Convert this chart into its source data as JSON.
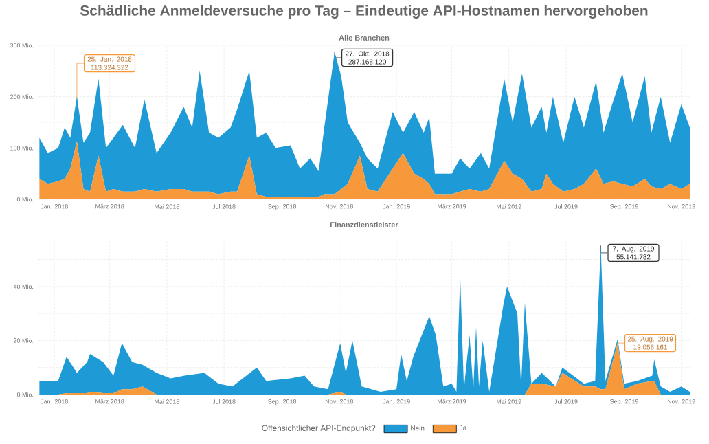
{
  "chart_data": [
    {
      "type": "area",
      "stacked": true,
      "title": "Schädliche Anmeldeversuche pro Tag – Eindeutige API-Hostnamen hervorgehoben",
      "subtitle": "Alle Branchen",
      "grid": true,
      "x": [
        "2017-12-16",
        "2017-12-25",
        "2018-01-05",
        "2018-01-12",
        "2018-01-18",
        "2018-01-25",
        "2018-02-01",
        "2018-02-08",
        "2018-02-17",
        "2018-02-25",
        "2018-03-05",
        "2018-03-15",
        "2018-03-28",
        "2018-04-07",
        "2018-04-20",
        "2018-05-05",
        "2018-05-19",
        "2018-05-28",
        "2018-06-05",
        "2018-06-15",
        "2018-06-25",
        "2018-07-08",
        "2018-07-15",
        "2018-07-28",
        "2018-08-05",
        "2018-08-15",
        "2018-08-25",
        "2018-09-10",
        "2018-09-20",
        "2018-10-01",
        "2018-10-10",
        "2018-10-16",
        "2018-10-27",
        "2018-11-03",
        "2018-11-10",
        "2018-11-23",
        "2018-12-01",
        "2018-12-12",
        "2018-12-28",
        "2019-01-08",
        "2019-01-20",
        "2019-01-30",
        "2019-02-05",
        "2019-02-11",
        "2019-03-01",
        "2019-03-10",
        "2019-03-20",
        "2019-04-01",
        "2019-04-10",
        "2019-04-26",
        "2019-05-05",
        "2019-05-15",
        "2019-05-25",
        "2019-06-05",
        "2019-06-10",
        "2019-06-17",
        "2019-06-28",
        "2019-07-10",
        "2019-07-20",
        "2019-08-02",
        "2019-08-10",
        "2019-08-20",
        "2019-08-30",
        "2019-09-10",
        "2019-09-23",
        "2019-09-30",
        "2019-10-10",
        "2019-10-20",
        "2019-11-01",
        "2019-11-10"
      ],
      "series": [
        {
          "color": "#f7993a",
          "values": [
            40,
            30,
            35,
            40,
            60,
            113.324322,
            20,
            15,
            85,
            15,
            20,
            15,
            15,
            20,
            15,
            20,
            20,
            15,
            15,
            15,
            10,
            15,
            15,
            85,
            10,
            5,
            5,
            5,
            5,
            5,
            5,
            10,
            10,
            20,
            30,
            85,
            20,
            15,
            60,
            90,
            50,
            40,
            30,
            10,
            10,
            15,
            20,
            15,
            20,
            75,
            50,
            40,
            15,
            20,
            50,
            30,
            15,
            20,
            30,
            60,
            30,
            35,
            30,
            25,
            40,
            25,
            20,
            30,
            20,
            30
          ]
        },
        {
          "color": "#1e9ad6",
          "values": [
            80,
            60,
            65,
            100,
            60,
            87,
            90,
            115,
            150,
            85,
            100,
            130,
            85,
            175,
            75,
            110,
            160,
            125,
            235,
            115,
            110,
            125,
            160,
            165,
            110,
            125,
            95,
            100,
            55,
            75,
            50,
            130,
            277.16812,
            220,
            120,
            25,
            60,
            45,
            110,
            40,
            120,
            90,
            130,
            40,
            40,
            65,
            40,
            75,
            40,
            160,
            100,
            205,
            125,
            160,
            80,
            170,
            95,
            180,
            110,
            170,
            100,
            155,
            215,
            125,
            200,
            105,
            180,
            80,
            165,
            110
          ]
        }
      ],
      "xlim": [
        "2017-12-15",
        "2019-11-10"
      ],
      "xticks": [
        {
          "value": "2018-01-01",
          "label": "Jan. 2018"
        },
        {
          "value": "2018-03-01",
          "label": "März 2018"
        },
        {
          "value": "2018-05-01",
          "label": "Mai 2018"
        },
        {
          "value": "2018-07-01",
          "label": "Jul 2018"
        },
        {
          "value": "2018-09-01",
          "label": "Sep. 2018"
        },
        {
          "value": "2018-11-01",
          "label": "Nov. 2018"
        },
        {
          "value": "2019-01-01",
          "label": "Jan. 2019"
        },
        {
          "value": "2019-03-01",
          "label": "März 2019"
        },
        {
          "value": "2019-05-01",
          "label": "Mai 2019"
        },
        {
          "value": "2019-07-01",
          "label": "Jul 2019"
        },
        {
          "value": "2019-09-01",
          "label": "Sep. 2019"
        },
        {
          "value": "2019-11-01",
          "label": "Nov. 2019"
        }
      ],
      "ylim": [
        0,
        300
      ],
      "yticks": [
        {
          "value": 0,
          "label": "0 Mio."
        },
        {
          "value": 50,
          "label": null
        },
        {
          "value": 100,
          "label": "100 Mio."
        },
        {
          "value": 150,
          "label": null
        },
        {
          "value": 200,
          "label": "200 Mio."
        },
        {
          "value": 250,
          "label": null
        },
        {
          "value": 300,
          "label": "300 Mio."
        }
      ],
      "annotations": [
        {
          "text": "25. Jan. 2018 113.324.322",
          "x": "2018-01-25",
          "y": 113.324322
        },
        {
          "text": "27. Okt. 2018 287.168.120",
          "x": "2018-10-27",
          "y": 287.16812
        }
      ]
    },
    {
      "type": "area",
      "stacked": true,
      "title": "Finanzdienstleister",
      "grid": true,
      "legend": "bottom",
      "legend_title": "Offensichtlicher API-Endpunkt?",
      "x": [
        "2017-12-16",
        "2018-01-05",
        "2018-01-14",
        "2018-01-25",
        "2018-02-05",
        "2018-02-08",
        "2018-02-22",
        "2018-03-05",
        "2018-03-14",
        "2018-03-25",
        "2018-04-05",
        "2018-04-20",
        "2018-05-05",
        "2018-05-20",
        "2018-06-10",
        "2018-06-25",
        "2018-07-10",
        "2018-08-05",
        "2018-08-15",
        "2018-09-10",
        "2018-09-25",
        "2018-10-05",
        "2018-10-20",
        "2018-11-02",
        "2018-11-08",
        "2018-11-15",
        "2018-11-25",
        "2018-12-15",
        "2019-01-01",
        "2019-01-06",
        "2019-01-12",
        "2019-01-19",
        "2019-02-05",
        "2019-02-12",
        "2019-02-20",
        "2019-03-01",
        "2019-03-06",
        "2019-03-10",
        "2019-03-14",
        "2019-03-20",
        "2019-03-24",
        "2019-03-27",
        "2019-03-30",
        "2019-04-03",
        "2019-04-10",
        "2019-04-25",
        "2019-04-29",
        "2019-05-10",
        "2019-05-14",
        "2019-05-18",
        "2019-05-25",
        "2019-06-05",
        "2019-06-20",
        "2019-06-27",
        "2019-07-20",
        "2019-08-01",
        "2019-08-07",
        "2019-08-12",
        "2019-08-25",
        "2019-09-01",
        "2019-09-15",
        "2019-10-01",
        "2019-10-03",
        "2019-10-10",
        "2019-10-20",
        "2019-11-01",
        "2019-11-10"
      ],
      "series": [
        {
          "name": "Ja",
          "color": "#f7993a",
          "values": [
            0,
            0,
            0.5,
            0.5,
            0.5,
            1,
            0.5,
            0.5,
            2,
            2,
            3,
            0,
            0,
            0,
            0,
            0,
            0,
            0,
            0,
            0,
            0,
            0,
            0,
            1,
            0,
            0,
            0,
            0,
            0,
            0,
            0,
            0,
            0,
            0,
            0,
            0,
            0,
            0,
            0,
            0,
            0,
            0,
            0,
            0,
            0,
            0,
            0,
            0,
            0,
            0,
            4,
            4,
            3,
            8,
            3,
            3,
            2,
            2,
            19.058161,
            2,
            4,
            5,
            5,
            0,
            0,
            0,
            0
          ]
        },
        {
          "name": "Nein",
          "color": "#1e9ad6",
          "values": [
            5,
            5,
            13.5,
            7.5,
            11.5,
            14,
            11.5,
            6.5,
            17,
            10,
            8,
            8,
            6,
            7,
            8,
            4,
            3,
            10,
            5,
            6,
            7,
            3,
            2,
            18,
            8,
            20,
            3,
            1,
            2,
            15,
            5,
            14,
            29,
            22,
            3,
            4,
            1,
            44,
            2,
            22,
            2,
            25,
            3,
            20,
            1,
            33,
            40,
            30,
            3,
            34,
            0,
            4,
            0,
            2,
            1,
            2,
            53.141782,
            3,
            1.5,
            2,
            1,
            2,
            8,
            3,
            1,
            3,
            1
          ]
        }
      ],
      "xlim": [
        "2017-12-15",
        "2019-11-10"
      ],
      "xticks": [
        {
          "value": "2018-01-01",
          "label": "Jan. 2018"
        },
        {
          "value": "2018-03-01",
          "label": "März 2018"
        },
        {
          "value": "2018-05-01",
          "label": "Mai 2018"
        },
        {
          "value": "2018-07-01",
          "label": "Jul 2018"
        },
        {
          "value": "2018-09-01",
          "label": "Sep. 2018"
        },
        {
          "value": "2018-11-01",
          "label": "Nov. 2018"
        },
        {
          "value": "2019-01-01",
          "label": "Jan. 2019"
        },
        {
          "value": "2019-03-01",
          "label": "März 2019"
        },
        {
          "value": "2019-05-01",
          "label": "Mai 2019"
        },
        {
          "value": "2019-07-01",
          "label": "Jul 2019"
        },
        {
          "value": "2019-09-01",
          "label": "Sep. 2019"
        },
        {
          "value": "2019-11-01",
          "label": "Nov. 2019"
        }
      ],
      "ylim": [
        0,
        57
      ],
      "yticks": [
        {
          "value": 0,
          "label": "0 Mio."
        },
        {
          "value": 10,
          "label": null
        },
        {
          "value": 20,
          "label": "20 Mio."
        },
        {
          "value": 30,
          "label": null
        },
        {
          "value": 40,
          "label": "40 Mio."
        },
        {
          "value": 50,
          "label": null
        }
      ],
      "annotations": [
        {
          "text": "7. Aug. 2019 55.141.782",
          "x": "2019-08-07",
          "y": 55.141782
        },
        {
          "text": "25. Aug. 2019 19.058.161",
          "x": "2019-08-25",
          "y": 19.058161
        }
      ]
    }
  ]
}
